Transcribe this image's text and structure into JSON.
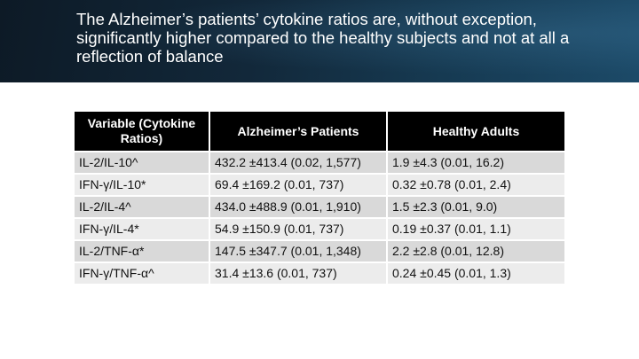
{
  "slide": {
    "title": "The Alzheimer’s patients’ cytokine ratios are, without exception, significantly higher compared to the healthy subjects and not at all a reflection of balance"
  },
  "table": {
    "headers": [
      "Variable (Cytokine Ratios)",
      "Alzheimer’s Patients",
      "Healthy Adults"
    ],
    "rows": [
      [
        "IL-2/IL-10^",
        "432.2 ±413.4 (0.02, 1,577)",
        "1.9 ±4.3 (0.01, 16.2)"
      ],
      [
        "IFN-γ/IL-10*",
        "69.4 ±169.2 (0.01, 737)",
        "0.32 ±0.78 (0.01, 2.4)"
      ],
      [
        "IL-2/IL-4^",
        "434.0 ±488.9 (0.01, 1,910)",
        "1.5 ±2.3 (0.01, 9.0)"
      ],
      [
        "IFN-γ/IL-4*",
        "54.9 ±150.9 (0.01, 737)",
        "0.19 ±0.37 (0.01, 1.1)"
      ],
      [
        "IL-2/TNF-α*",
        "147.5 ±347.7 (0.01, 1,348)",
        "2.2 ±2.8 (0.01, 12.8)"
      ],
      [
        "IFN-γ/TNF-α^",
        "31.4 ±13.6 (0.01, 737)",
        "0.24 ±0.45 (0.01, 1.3)"
      ]
    ]
  },
  "colors": {
    "header_bg": "#000000",
    "row_odd": "#d9d9d9",
    "row_even": "#ececec",
    "banner": "#12283a"
  }
}
